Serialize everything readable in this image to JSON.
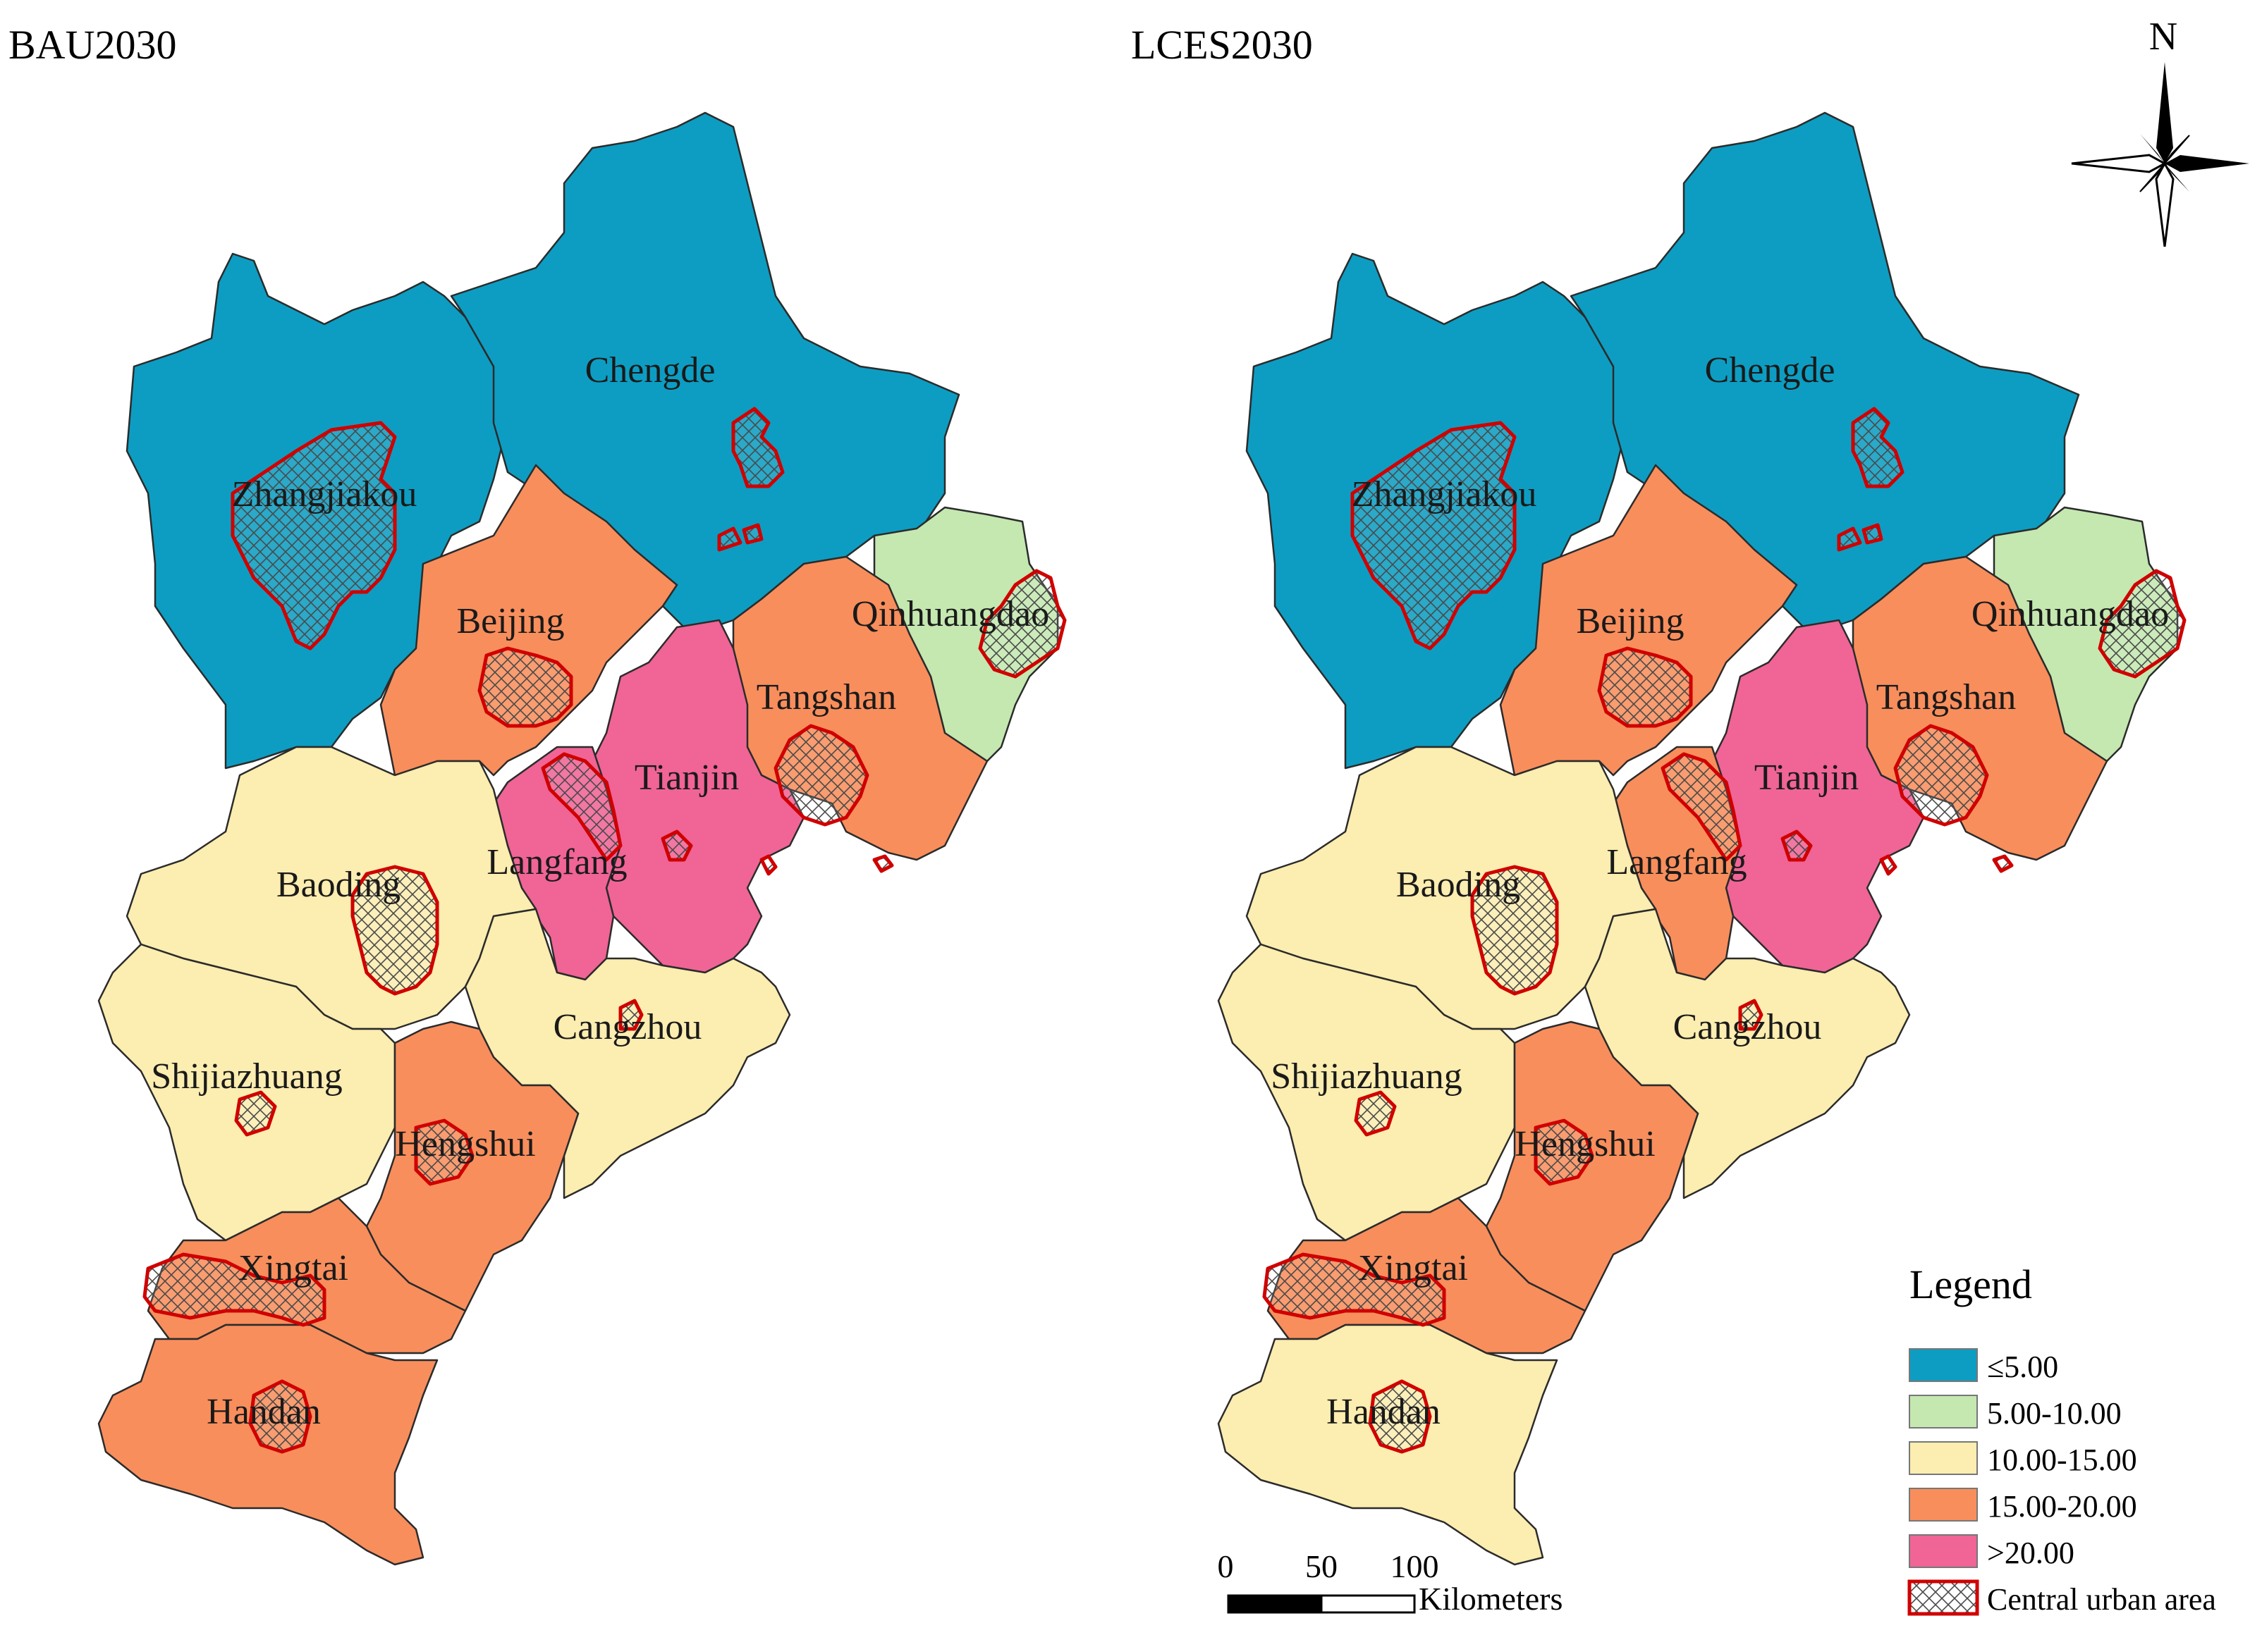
{
  "panels": [
    {
      "title": "BAU2030",
      "regions": [
        {
          "name": "Zhangjiakou",
          "class": "≤5.00"
        },
        {
          "name": "Chengde",
          "class": "≤5.00"
        },
        {
          "name": "Qinhuangdao",
          "class": "5.00-10.00"
        },
        {
          "name": "Beijing",
          "class": "15.00-20.00"
        },
        {
          "name": "Tangshan",
          "class": "15.00-20.00"
        },
        {
          "name": "Tianjin",
          "class": ">20.00"
        },
        {
          "name": "Langfang",
          "class": ">20.00"
        },
        {
          "name": "Baoding",
          "class": "10.00-15.00"
        },
        {
          "name": "Cangzhou",
          "class": "10.00-15.00"
        },
        {
          "name": "Shijiazhuang",
          "class": "10.00-15.00"
        },
        {
          "name": "Hengshui",
          "class": "15.00-20.00"
        },
        {
          "name": "Xingtai",
          "class": "15.00-20.00"
        },
        {
          "name": "Handan",
          "class": "15.00-20.00"
        }
      ]
    },
    {
      "title": "LCES2030",
      "regions": [
        {
          "name": "Zhangjiakou",
          "class": "≤5.00"
        },
        {
          "name": "Chengde",
          "class": "≤5.00"
        },
        {
          "name": "Qinhuangdao",
          "class": "5.00-10.00"
        },
        {
          "name": "Beijing",
          "class": "15.00-20.00"
        },
        {
          "name": "Tangshan",
          "class": "15.00-20.00"
        },
        {
          "name": "Tianjin",
          "class": ">20.00"
        },
        {
          "name": "Langfang",
          "class": "15.00-20.00"
        },
        {
          "name": "Baoding",
          "class": "10.00-15.00"
        },
        {
          "name": "Cangzhou",
          "class": "10.00-15.00"
        },
        {
          "name": "Shijiazhuang",
          "class": "10.00-15.00"
        },
        {
          "name": "Hengshui",
          "class": "15.00-20.00"
        },
        {
          "name": "Xingtai",
          "class": "15.00-20.00"
        },
        {
          "name": "Handan",
          "class": "10.00-15.00"
        }
      ]
    }
  ],
  "legend": {
    "title": "Legend",
    "classes": [
      {
        "label": "≤5.00",
        "color": "#0d9dc2"
      },
      {
        "label": "5.00-10.00",
        "color": "#c4e8b0"
      },
      {
        "label": "10.00-15.00",
        "color": "#fcedb0"
      },
      {
        "label": "15.00-20.00",
        "color": "#f88e5c"
      },
      {
        "label": ">20.00",
        "color": "#f06496"
      }
    ],
    "urban_label": "Central urban area",
    "urban_outline": "#d00000"
  },
  "north_arrow": {
    "label": "N"
  },
  "scale_bar": {
    "ticks": [
      "0",
      "50",
      "100"
    ],
    "unit": "Kilometers"
  }
}
